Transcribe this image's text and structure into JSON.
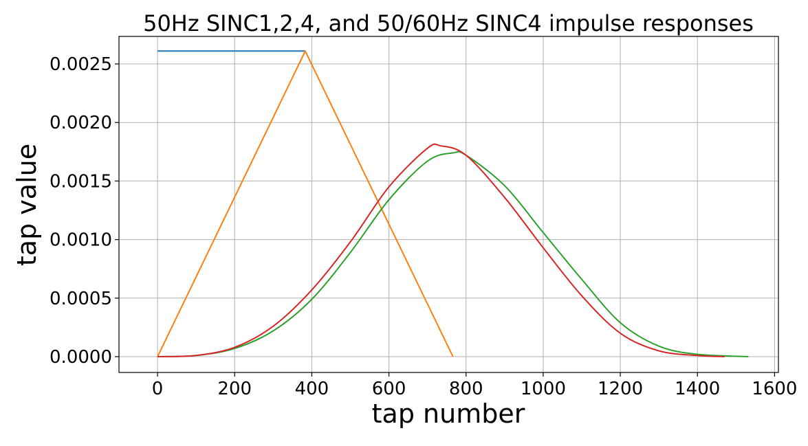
{
  "chart_data": {
    "type": "line",
    "title": "50Hz SINC1,2,4, and 50/60Hz SINC4 impulse responses",
    "xlabel": "tap number",
    "ylabel": "tap value",
    "xlim": [
      -100,
      1610
    ],
    "ylim": [
      -0.000135,
      0.002735
    ],
    "xticks": [
      0,
      200,
      400,
      600,
      800,
      1000,
      1200,
      1400,
      1600
    ],
    "xtick_labels": [
      "0",
      "200",
      "400",
      "600",
      "800",
      "1000",
      "1200",
      "1400",
      "1600"
    ],
    "yticks": [
      0.0,
      0.0005,
      0.001,
      0.0015,
      0.002,
      0.0025
    ],
    "ytick_labels": [
      "0.0000",
      "0.0005",
      "0.0010",
      "0.0015",
      "0.0020",
      "0.0025"
    ],
    "grid": true,
    "series": [
      {
        "color": "#1f77b4",
        "kind": "sinc1",
        "x": [
          0,
          383
        ],
        "y": [
          0.00261,
          0.00261
        ]
      },
      {
        "color": "#ff7f0e",
        "kind": "sinc2",
        "x": [
          0,
          383,
          766
        ],
        "y": [
          0.0,
          0.00261,
          0.0
        ]
      },
      {
        "color": "#2ca02c",
        "kind": "sinc4",
        "x": [
          0,
          100,
          200,
          300,
          400,
          500,
          600,
          700,
          766,
          800,
          900,
          1000,
          1100,
          1200,
          1300,
          1400,
          1532
        ],
        "y": [
          0.0,
          1e-05,
          7e-05,
          0.00022,
          0.00049,
          0.00089,
          0.00134,
          0.00167,
          0.00174,
          0.00172,
          0.00146,
          0.00106,
          0.00066,
          0.00029,
          9e-05,
          2e-05,
          0.0
        ]
      },
      {
        "color": "#d62728",
        "kind": "sinc4",
        "x": [
          0,
          100,
          200,
          300,
          400,
          500,
          600,
          700,
          735,
          800,
          900,
          1000,
          1100,
          1200,
          1300,
          1400,
          1470
        ],
        "y": [
          0.0,
          1e-05,
          8e-05,
          0.00026,
          0.00057,
          0.00098,
          0.00145,
          0.00178,
          0.0018,
          0.00172,
          0.00136,
          0.00093,
          0.00052,
          0.0002,
          5e-05,
          1e-05,
          0.0
        ]
      }
    ]
  }
}
